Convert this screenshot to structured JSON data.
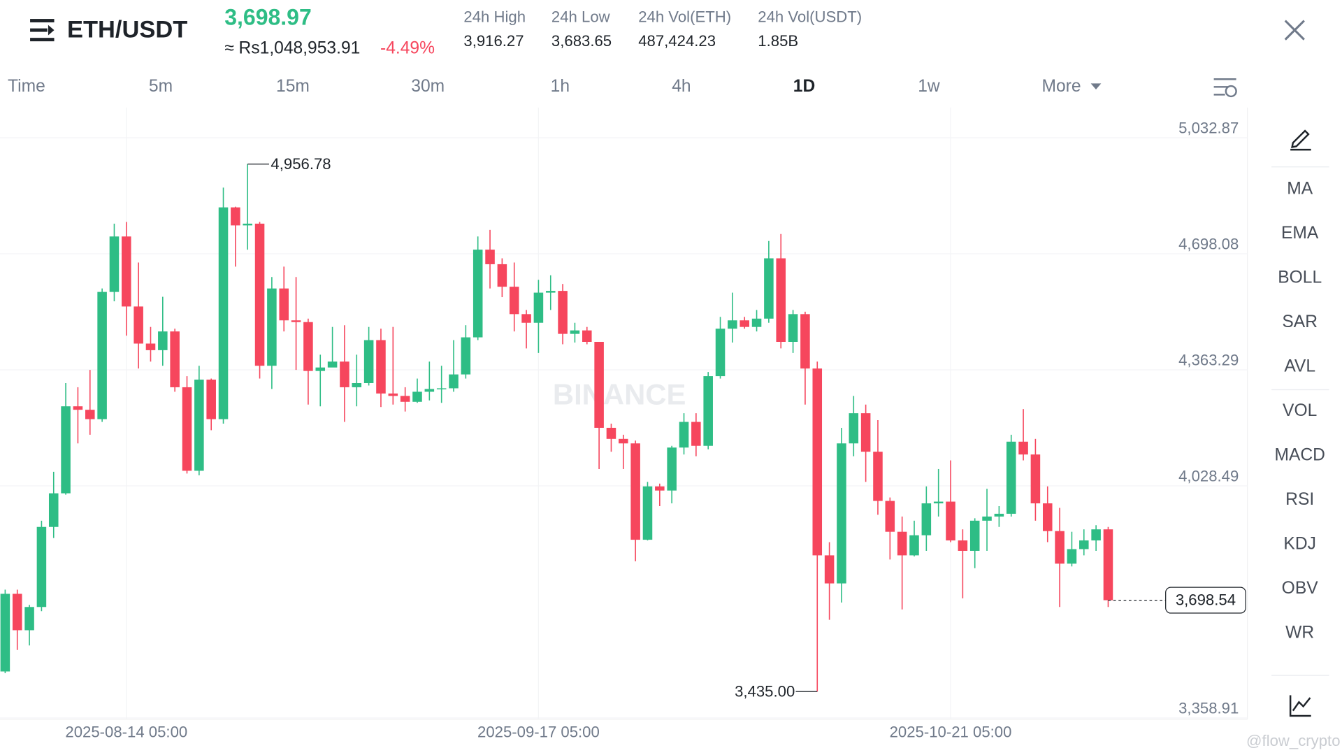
{
  "header": {
    "symbol": "ETH/USDT",
    "price": "3,698.97",
    "fiat_price": "≈ Rs1,048,953.91",
    "change": "-4.49%",
    "stats": [
      {
        "label": "24h High",
        "value": "3,916.27"
      },
      {
        "label": "24h Low",
        "value": "3,683.65"
      },
      {
        "label": "24h Vol(ETH)",
        "value": "487,424.23"
      },
      {
        "label": "24h Vol(USDT)",
        "value": "1.85B"
      }
    ]
  },
  "tabs": [
    "Time",
    "5m",
    "15m",
    "30m",
    "1h",
    "4h",
    "1D",
    "1w",
    "More"
  ],
  "active_tab": "1D",
  "indicators": [
    "MA",
    "EMA",
    "BOLL",
    "SAR",
    "AVL",
    "VOL",
    "MACD",
    "RSI",
    "KDJ",
    "OBV",
    "WR"
  ],
  "watermark": "BINANCE",
  "credit": "@flow_crypto",
  "chart_data": {
    "type": "candlestick",
    "up_color": "#2ebd85",
    "down_color": "#f6465d",
    "grid": true,
    "categories": [
      null,
      null,
      null,
      null,
      null,
      null,
      null,
      null,
      null,
      null,
      "2025-08-14 05:00",
      null,
      null,
      null,
      null,
      null,
      null,
      null,
      null,
      null,
      null,
      null,
      null,
      null,
      null,
      null,
      null,
      null,
      null,
      null,
      null,
      null,
      null,
      null,
      null,
      null,
      null,
      null,
      null,
      null,
      null,
      null,
      null,
      null,
      "2025-09-17 05:00",
      null,
      null,
      null,
      null,
      null,
      null,
      null,
      null,
      null,
      null,
      null,
      null,
      null,
      null,
      null,
      null,
      null,
      null,
      null,
      null,
      null,
      null,
      null,
      null,
      null,
      null,
      null,
      null,
      null,
      null,
      null,
      null,
      null,
      "2025-10-21 05:00",
      null,
      null,
      null,
      null,
      null,
      null,
      null,
      null,
      null,
      null,
      null,
      null,
      null
    ],
    "open": [
      3493,
      3717,
      3612,
      3679,
      3910,
      4007,
      4258,
      4248,
      4221,
      4588,
      4748,
      4546,
      4439,
      4420,
      4474,
      4313,
      4072,
      4335,
      4221,
      4832,
      4780,
      4785,
      4375,
      4598,
      4506,
      4501,
      4360,
      4370,
      4387,
      4313,
      4325,
      4449,
      4295,
      4288,
      4271,
      4300,
      4308,
      4310,
      4350,
      4457,
      4710,
      4668,
      4603,
      4524,
      4499,
      4586,
      4591,
      4467,
      4477,
      4444,
      4196,
      4164,
      4151,
      3873,
      4027,
      4015,
      4139,
      4213,
      4144,
      4345,
      4482,
      4506,
      4487,
      4511,
      4685,
      4444,
      4524,
      4367,
      3828,
      3747,
      4151,
      4238,
      4127,
      3985,
      3896,
      3828,
      3886,
      3978,
      3983,
      3871,
      3841,
      3928,
      3940,
      3948,
      4156,
      4119,
      3978,
      3898,
      3804,
      3846,
      3871,
      3903
    ],
    "high": [
      3729,
      3729,
      3685,
      3928,
      4069,
      4325,
      4313,
      4363,
      4598,
      4785,
      4790,
      4673,
      4487,
      4574,
      4482,
      4345,
      4375,
      4338,
      4889,
      4834,
      4956.78,
      4790,
      4631,
      4661,
      4631,
      4511,
      4407,
      4487,
      4492,
      4407,
      4487,
      4482,
      4487,
      4313,
      4338,
      4387,
      4375,
      4449,
      4492,
      4748,
      4767,
      4685,
      4673,
      4536,
      4623,
      4636,
      4611,
      4499,
      4487,
      4442,
      4208,
      4176,
      4159,
      4040,
      4035,
      4144,
      4238,
      4238,
      4357,
      4516,
      4586,
      4516,
      4536,
      4735,
      4755,
      4536,
      4531,
      4387,
      3866,
      4196,
      4288,
      4263,
      4218,
      3995,
      3940,
      3928,
      4027,
      4077,
      4102,
      3903,
      3935,
      4020,
      3970,
      4176,
      4250,
      4164,
      4027,
      3965,
      3896,
      3903,
      3915,
      3910
    ],
    "low": [
      3488,
      3555,
      3568,
      3667,
      3878,
      4003,
      4151,
      4176,
      4213,
      4561,
      4462,
      4367,
      4387,
      4375,
      4300,
      4064,
      4059,
      4189,
      4208,
      4661,
      4710,
      4338,
      4308,
      4474,
      4363,
      4263,
      4258,
      4375,
      4213,
      4258,
      4318,
      4256,
      4263,
      4243,
      4268,
      4275,
      4268,
      4300,
      4338,
      4449,
      4598,
      4573,
      4474,
      4425,
      4412,
      4536,
      4437,
      4442,
      4437,
      4077,
      4127,
      4077,
      3811,
      3871,
      3970,
      3978,
      4119,
      4114,
      4134,
      4338,
      4442,
      4482,
      4474,
      4499,
      4425,
      4412,
      4263,
      3435.0,
      3642,
      3692,
      4114,
      4040,
      3945,
      3816,
      3672,
      3825,
      3841,
      3940,
      3866,
      3704,
      3791,
      3841,
      3910,
      3940,
      4102,
      3928,
      3866,
      3679,
      3796,
      3828,
      3841,
      3679
    ],
    "close": [
      3717,
      3612,
      3679,
      3910,
      4007,
      4258,
      4248,
      4221,
      4588,
      4748,
      4546,
      4439,
      4420,
      4474,
      4313,
      4072,
      4335,
      4221,
      4832,
      4780,
      4785,
      4375,
      4598,
      4506,
      4501,
      4360,
      4370,
      4387,
      4313,
      4325,
      4449,
      4295,
      4288,
      4271,
      4300,
      4308,
      4310,
      4350,
      4457,
      4710,
      4668,
      4603,
      4524,
      4499,
      4586,
      4591,
      4467,
      4477,
      4444,
      4196,
      4164,
      4151,
      3873,
      4027,
      4015,
      4139,
      4213,
      4144,
      4345,
      4482,
      4506,
      4487,
      4511,
      4685,
      4444,
      4524,
      4367,
      3828,
      3747,
      4151,
      4238,
      4127,
      3985,
      3896,
      3828,
      3886,
      3978,
      3983,
      3871,
      3841,
      3928,
      3940,
      3948,
      4156,
      4119,
      3978,
      3898,
      3804,
      3846,
      3871,
      3903,
      3698.54
    ],
    "ylim": [
      3350,
      5120
    ],
    "yticks": [
      {
        "value": 5032.87,
        "label": "5,032.87"
      },
      {
        "value": 4698.08,
        "label": "4,698.08"
      },
      {
        "value": 4363.29,
        "label": "4,363.29"
      },
      {
        "value": 4028.49,
        "label": "4,028.49"
      },
      {
        "value": 3358.91,
        "label": "3,358.91"
      }
    ],
    "max_label": "4,956.78",
    "min_label": "3,435.00",
    "last_price_label": "3,698.54"
  }
}
